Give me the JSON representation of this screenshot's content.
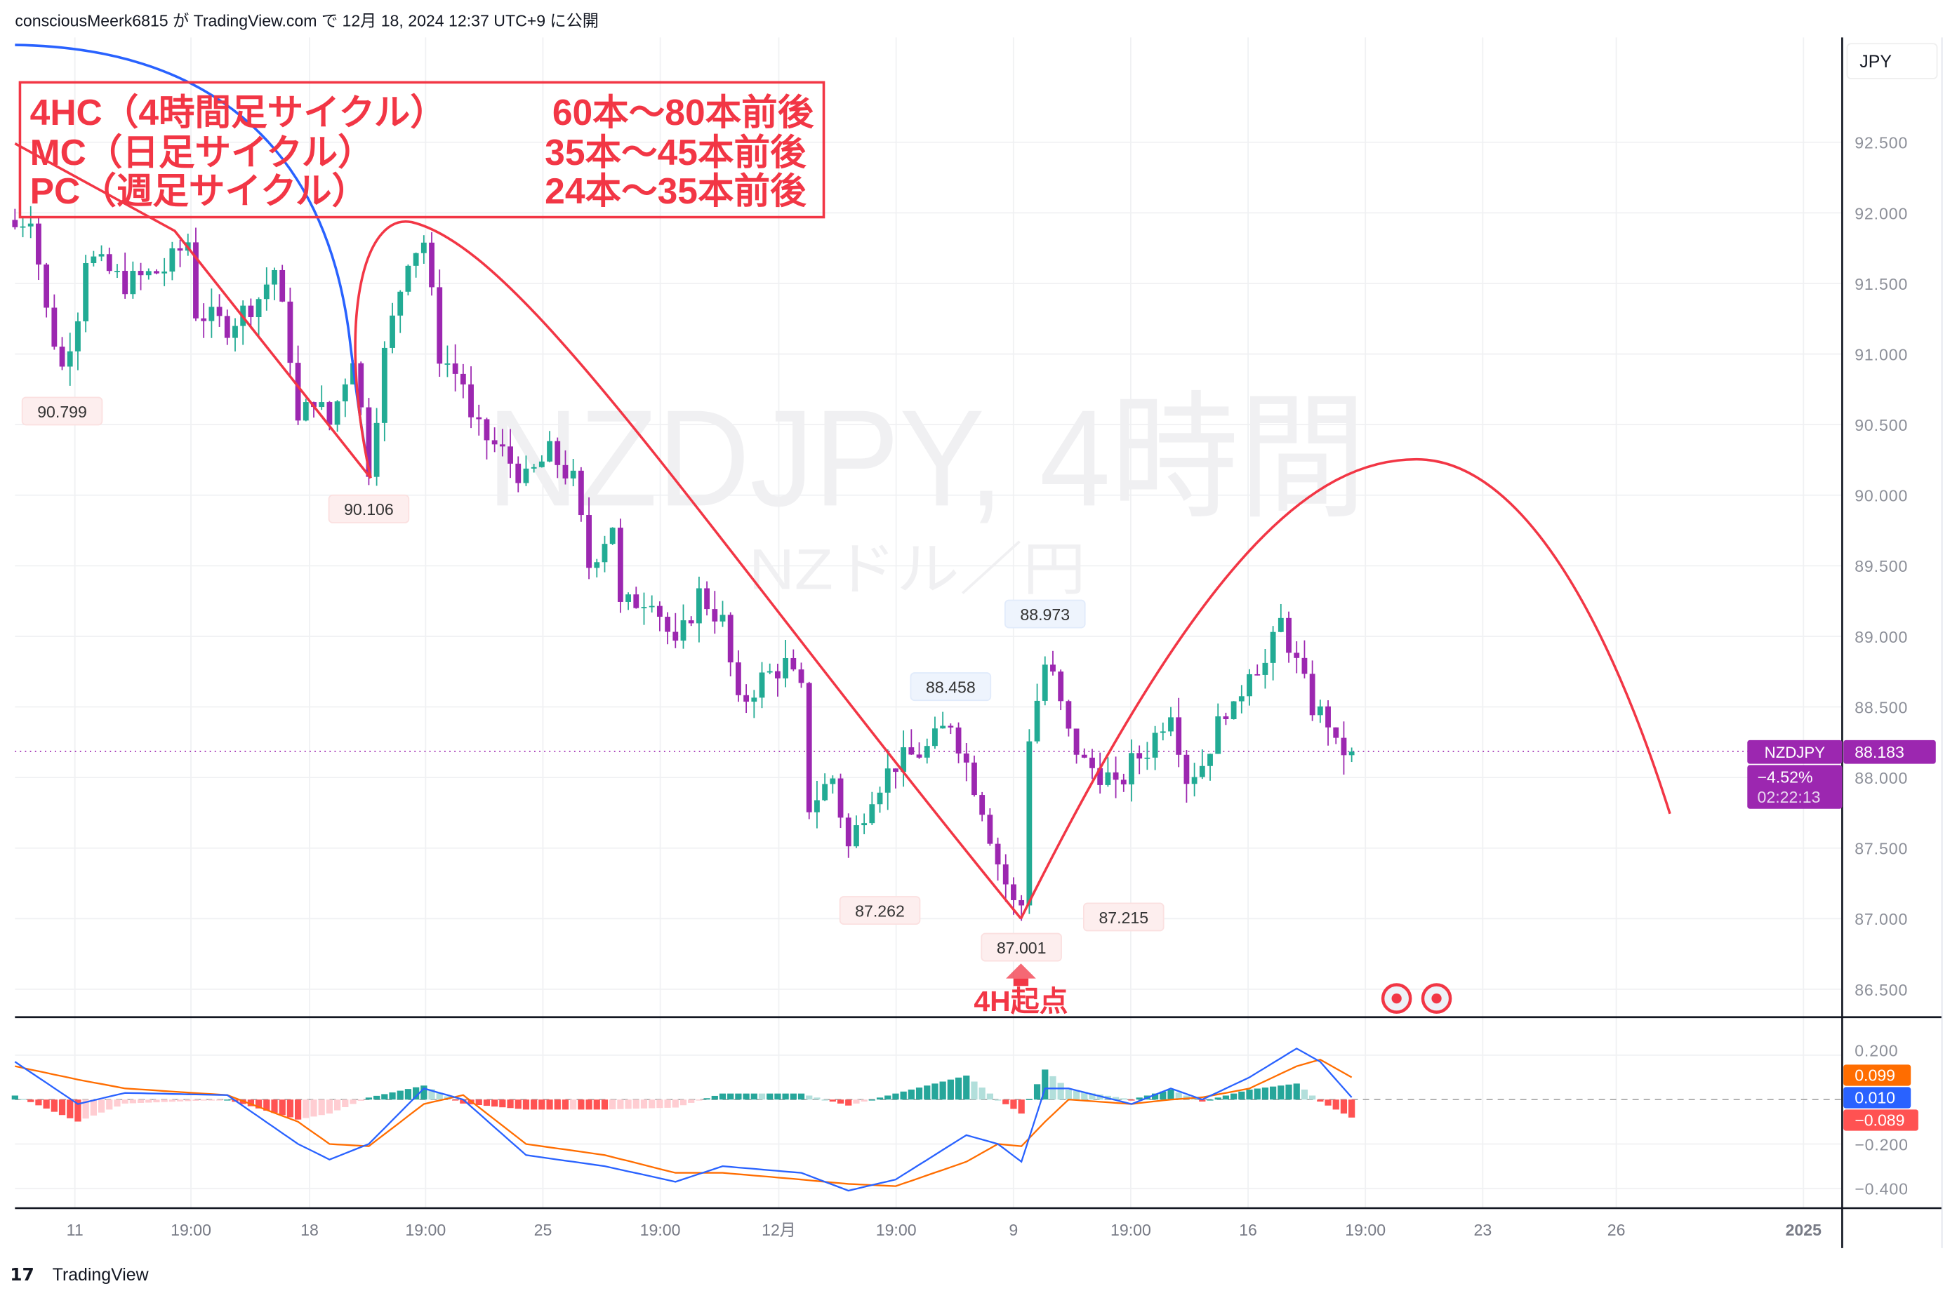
{
  "header": {
    "published": "consciousMeerk6815 が TradingView.com で 12月 18, 2024 12:37 UTC+9 に公開"
  },
  "watermark": {
    "symbol": "NZDJPY, 4時間",
    "description": "NZドル／円"
  },
  "legend": {
    "rows": [
      {
        "name": "4HC（4時間足サイクル）",
        "value": "60本〜80本前後"
      },
      {
        "name": "MC（日足サイクル）",
        "value": "35本〜45本前後"
      },
      {
        "name": "PC（週足サイクル）",
        "value": "24本〜35本前後"
      }
    ]
  },
  "annotation": {
    "label": "4H起点"
  },
  "price_axis": {
    "currency": "JPY",
    "ticks": [
      "92.500",
      "92.000",
      "91.500",
      "91.000",
      "90.500",
      "90.000",
      "89.500",
      "89.000",
      "88.500",
      "88.000",
      "87.500",
      "87.000",
      "86.500"
    ],
    "tick_values": [
      92.5,
      92.0,
      91.5,
      91.0,
      90.5,
      90.0,
      89.5,
      89.0,
      88.5,
      88.0,
      87.5,
      87.0,
      86.5
    ]
  },
  "last_price": {
    "symbol": "NZDJPY",
    "price": "88.183",
    "change": "−4.52%",
    "countdown": "02:22:13",
    "value": 88.183
  },
  "macd_axis": {
    "ticks": [
      "0.200",
      "−0.200",
      "−0.400"
    ],
    "tick_values": [
      0.2,
      -0.2,
      -0.4
    ],
    "signal_label": "0.099",
    "macd_label": "0.010",
    "hist_label": "−0.089"
  },
  "time_axis": {
    "ticks": [
      "11",
      "19:00",
      "18",
      "19:00",
      "25",
      "19:00",
      "12月",
      "19:00",
      "9",
      "19:00",
      "16",
      "19:00",
      "23",
      "26",
      "2025"
    ]
  },
  "price_labels": [
    {
      "text": "90.799",
      "value": 90.799,
      "bar": 6,
      "kind": "low"
    },
    {
      "text": "90.106",
      "value": 90.106,
      "bar": 45,
      "kind": "low"
    },
    {
      "text": "88.458",
      "value": 88.458,
      "bar": 119,
      "kind": "high"
    },
    {
      "text": "88.973",
      "value": 88.973,
      "bar": 131,
      "kind": "high"
    },
    {
      "text": "87.262",
      "value": 87.262,
      "bar": 110,
      "kind": "low"
    },
    {
      "text": "87.001",
      "value": 87.001,
      "bar": 128,
      "kind": "low"
    },
    {
      "text": "87.215",
      "value": 87.215,
      "bar": 141,
      "kind": "low"
    }
  ],
  "colors": {
    "up": "#22ab94",
    "down": "#9c27b0",
    "cycle": "#f23645",
    "blue": "#2962ff",
    "orange": "#ff6d00",
    "hist_up": "#26a69a",
    "hist_up_light": "#b2dfdb",
    "hist_down": "#ff5252",
    "hist_down_light": "#ffcdd2"
  },
  "chart_data": {
    "type": "candlestick",
    "bars": 171,
    "close_keypoints": [
      [
        0,
        91.9
      ],
      [
        2,
        92.0
      ],
      [
        4,
        91.3
      ],
      [
        6,
        90.9
      ],
      [
        8,
        91.3
      ],
      [
        9,
        91.7
      ],
      [
        14,
        91.5
      ],
      [
        19,
        91.6
      ],
      [
        22,
        91.8
      ],
      [
        23,
        91.3
      ],
      [
        27,
        91.2
      ],
      [
        31,
        91.4
      ],
      [
        33,
        91.6
      ],
      [
        35,
        91.0
      ],
      [
        36,
        90.5
      ],
      [
        38,
        90.7
      ],
      [
        40,
        90.5
      ],
      [
        43,
        91.0
      ],
      [
        45,
        90.2
      ],
      [
        47,
        91.0
      ],
      [
        50,
        91.7
      ],
      [
        52,
        91.8
      ],
      [
        54,
        91.0
      ],
      [
        57,
        90.8
      ],
      [
        58,
        90.5
      ],
      [
        62,
        90.3
      ],
      [
        65,
        90.1
      ],
      [
        68,
        90.3
      ],
      [
        71,
        90.1
      ],
      [
        73,
        89.5
      ],
      [
        76,
        89.8
      ],
      [
        77,
        89.2
      ],
      [
        81,
        89.3
      ],
      [
        84,
        88.9
      ],
      [
        87,
        89.3
      ],
      [
        90,
        89.1
      ],
      [
        92,
        88.5
      ],
      [
        95,
        88.7
      ],
      [
        98,
        88.8
      ],
      [
        100,
        88.6
      ],
      [
        101,
        87.8
      ],
      [
        104,
        88.0
      ],
      [
        106,
        87.5
      ],
      [
        109,
        87.9
      ],
      [
        112,
        88.1
      ],
      [
        116,
        88.2
      ],
      [
        119,
        88.4
      ],
      [
        121,
        88.1
      ],
      [
        123,
        87.8
      ],
      [
        125,
        87.4
      ],
      [
        127,
        87.1
      ],
      [
        128,
        87.1
      ],
      [
        129,
        88.3
      ],
      [
        131,
        88.8
      ],
      [
        132,
        88.7
      ],
      [
        134,
        88.3
      ],
      [
        136,
        88.1
      ],
      [
        139,
        88.0
      ],
      [
        140,
        87.9
      ],
      [
        142,
        88.1
      ],
      [
        144,
        88.2
      ],
      [
        147,
        88.5
      ],
      [
        149,
        88.0
      ],
      [
        151,
        88.1
      ],
      [
        154,
        88.5
      ],
      [
        155,
        88.45
      ],
      [
        157,
        88.8
      ],
      [
        159,
        88.8
      ],
      [
        161,
        89.1
      ],
      [
        163,
        88.8
      ],
      [
        165,
        88.5
      ],
      [
        167,
        88.4
      ],
      [
        168,
        88.2
      ],
      [
        170,
        88.183
      ]
    ],
    "macd_keypoints": [
      [
        0,
        0.17,
        0.15
      ],
      [
        8,
        -0.02,
        0.09
      ],
      [
        14,
        0.03,
        0.05
      ],
      [
        27,
        0.02,
        0.02
      ],
      [
        36,
        -0.2,
        -0.1
      ],
      [
        40,
        -0.27,
        -0.2
      ],
      [
        45,
        -0.2,
        -0.21
      ],
      [
        52,
        0.05,
        -0.02
      ],
      [
        57,
        0.0,
        0.02
      ],
      [
        65,
        -0.25,
        -0.2
      ],
      [
        75,
        -0.3,
        -0.25
      ],
      [
        84,
        -0.37,
        -0.33
      ],
      [
        90,
        -0.3,
        -0.33
      ],
      [
        100,
        -0.33,
        -0.36
      ],
      [
        106,
        -0.41,
        -0.38
      ],
      [
        112,
        -0.36,
        -0.39
      ],
      [
        121,
        -0.16,
        -0.28
      ],
      [
        125,
        -0.2,
        -0.2
      ],
      [
        128,
        -0.28,
        -0.21
      ],
      [
        131,
        0.05,
        -0.1
      ],
      [
        134,
        0.05,
        0.0
      ],
      [
        142,
        -0.02,
        -0.02
      ],
      [
        147,
        0.05,
        0.0
      ],
      [
        151,
        0.0,
        0.01
      ],
      [
        157,
        0.1,
        0.05
      ],
      [
        163,
        0.23,
        0.15
      ],
      [
        166,
        0.17,
        0.18
      ],
      [
        170,
        0.01,
        0.1
      ]
    ],
    "price_range": [
      86.3,
      93.0
    ],
    "macd_range": [
      -0.48,
      0.3
    ]
  },
  "footer": {
    "brand": "TradingView"
  }
}
